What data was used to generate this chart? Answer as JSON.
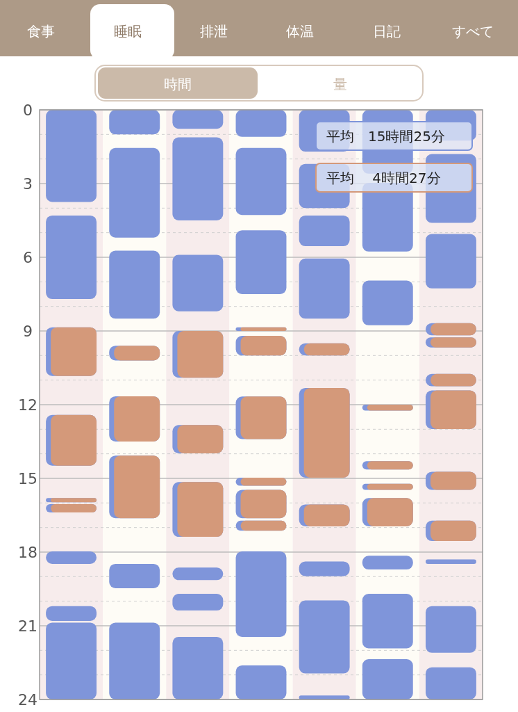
{
  "chart_data": {
    "type": "bar",
    "categories": [
      null,
      null,
      null,
      null,
      null,
      null,
      null
    ],
    "ylim": [
      24,
      0
    ],
    "yticks": [
      0,
      {
        "value": 1,
        "label": null
      },
      {
        "value": 2,
        "label": null
      },
      3,
      {
        "value": 4,
        "label": null
      },
      {
        "value": 5,
        "label": null
      },
      6,
      {
        "value": 7,
        "label": null
      },
      {
        "value": 8,
        "label": null
      },
      9,
      {
        "value": 10,
        "label": null
      },
      {
        "value": 11,
        "label": null
      },
      12,
      {
        "value": 13,
        "label": null
      },
      {
        "value": 14,
        "label": null
      },
      15,
      {
        "value": 16,
        "label": null
      },
      {
        "value": 17,
        "label": null
      },
      18,
      {
        "value": 19,
        "label": null
      },
      {
        "value": 20,
        "label": null
      },
      21,
      {
        "value": 22,
        "label": null
      },
      {
        "value": 23,
        "label": null
      },
      24
    ],
    "grid": true,
    "tick_labels": "y",
    "annotations": [
      "食事",
      "睡眠",
      "排泄",
      "体温",
      "日記",
      "すべて",
      "時間",
      "量",
      "平均　15時間25分",
      "平均　 4時間27分"
    ],
    "series": [
      {
        "color": "#7f95da",
        "base": [
          0,
          0,
          0,
          0,
          0,
          0,
          0
        ],
        "values": [
          3.75,
          1.0,
          0.77,
          1.1,
          1.7,
          2.6,
          1.25
        ]
      },
      {
        "color": "#7f95da",
        "base": [
          4.3,
          1.55,
          1.12,
          1.55,
          2.2,
          2.97,
          1.8
        ],
        "values": [
          3.4,
          3.65,
          3.38,
          2.73,
          1.8,
          2.8,
          2.8
        ]
      },
      {
        "color": "#7f95da",
        "base": [
          8.85,
          5.73,
          5.9,
          4.9,
          4.3,
          6.95,
          5.05
        ],
        "values": [
          1.98,
          2.77,
          2.3,
          2.6,
          1.25,
          1.82,
          2.22
        ]
      },
      {
        "color": "#7f95da",
        "base": [
          12.42,
          9.6,
          9.0,
          8.85,
          6.05,
          12.0,
          8.68
        ],
        "values": [
          2.06,
          0.6,
          1.9,
          0.15,
          2.45,
          0.24,
          0.5
        ]
      },
      {
        "color": "#7f95da",
        "base": [
          15.8,
          11.66,
          12.83,
          9.2,
          9.5,
          14.3,
          9.26
        ],
        "values": [
          0.17,
          1.84,
          1.15,
          0.8,
          0.5,
          0.34,
          0.41
        ]
      },
      {
        "color": "#7f95da",
        "base": [
          16.05,
          14.07,
          15.15,
          11.67,
          11.32,
          15.22,
          10.75
        ],
        "values": [
          0.34,
          2.55,
          2.23,
          1.73,
          3.65,
          0.25,
          0.5
        ]
      },
      {
        "color": "#7f95da",
        "base": [
          17.97,
          18.48,
          18.63,
          14.97,
          16.06,
          15.8,
          11.42
        ],
        "values": [
          0.51,
          0.99,
          0.51,
          0.33,
          0.89,
          1.15,
          1.57
        ]
      },
      {
        "color": "#7f95da",
        "base": [
          20.2,
          20.87,
          19.7,
          15.47,
          18.38,
          18.15,
          14.73
        ],
        "values": [
          0.6,
          3.13,
          0.68,
          1.15,
          0.6,
          0.56,
          0.74
        ]
      },
      {
        "color": "#7f95da",
        "base": [
          20.87,
          null,
          21.45,
          16.72,
          19.97,
          19.7,
          16.72
        ],
        "values": [
          3.13,
          null,
          2.55,
          0.41,
          2.97,
          2.22,
          0.83
        ]
      },
      {
        "color": "#7f95da",
        "base": [
          null,
          null,
          null,
          17.97,
          23.84,
          22.36,
          18.3
        ],
        "values": [
          null,
          null,
          null,
          3.48,
          0.16,
          1.64,
          0.18
        ]
      },
      {
        "color": "#7f95da",
        "base": [
          null,
          null,
          null,
          22.61,
          null,
          null,
          20.2
        ],
        "values": [
          null,
          null,
          null,
          1.39,
          null,
          null,
          1.9
        ]
      },
      {
        "color": "#7f95da",
        "base": [
          null,
          null,
          null,
          null,
          null,
          null,
          22.69
        ],
        "values": [
          null,
          null,
          null,
          null,
          null,
          null,
          1.31
        ]
      },
      {
        "color": "#d4997a",
        "base": [
          8.85,
          9.6,
          9.0,
          8.85,
          9.5,
          12.0,
          8.68
        ],
        "values": [
          1.98,
          0.6,
          1.9,
          0.15,
          0.5,
          0.24,
          0.5
        ]
      },
      {
        "color": "#d4997a",
        "base": [
          12.42,
          11.66,
          12.83,
          9.2,
          11.32,
          14.3,
          9.26
        ],
        "values": [
          2.06,
          1.84,
          1.15,
          0.8,
          3.65,
          0.34,
          0.41
        ]
      },
      {
        "color": "#d4997a",
        "base": [
          15.8,
          14.07,
          15.15,
          11.67,
          16.06,
          15.22,
          10.75
        ],
        "values": [
          0.17,
          2.55,
          2.23,
          1.73,
          0.89,
          0.25,
          0.5
        ]
      },
      {
        "color": "#d4997a",
        "base": [
          16.05,
          null,
          null,
          14.97,
          null,
          15.8,
          11.42
        ],
        "values": [
          0.34,
          null,
          null,
          0.33,
          null,
          1.15,
          1.57
        ]
      },
      {
        "color": "#d4997a",
        "base": [
          null,
          null,
          null,
          15.47,
          null,
          null,
          14.73
        ],
        "values": [
          null,
          null,
          null,
          1.15,
          null,
          null,
          0.74
        ]
      },
      {
        "color": "#d4997a",
        "base": [
          null,
          null,
          null,
          16.72,
          null,
          null,
          16.72
        ],
        "values": [
          null,
          null,
          null,
          0.41,
          null,
          null,
          0.83
        ]
      }
    ]
  }
}
